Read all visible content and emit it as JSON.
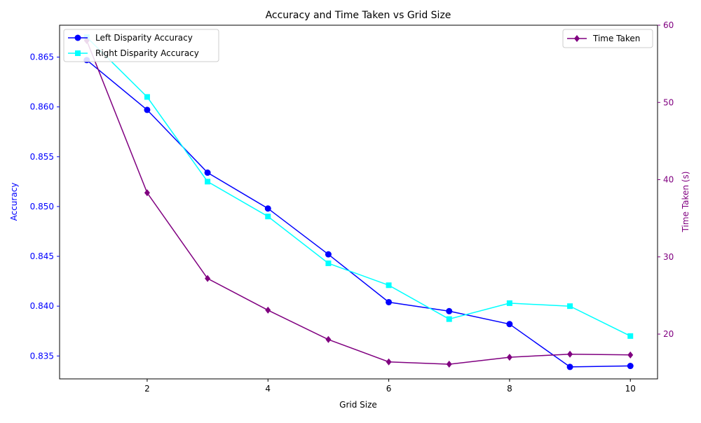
{
  "chart_data": {
    "type": "line",
    "title": "Accuracy and Time Taken vs Grid Size",
    "xlabel": "Grid Size",
    "ylabel_left": "Accuracy",
    "ylabel_right": "Time Taken (s)",
    "xlim": [
      0.55,
      10.45
    ],
    "ylim_left": [
      0.8327,
      0.8682
    ],
    "ylim_right": [
      14.2,
      60
    ],
    "x_ticks": [
      2,
      4,
      6,
      8,
      10
    ],
    "y_ticks_left": [
      0.835,
      0.84,
      0.845,
      0.85,
      0.855,
      0.86,
      0.865
    ],
    "y_ticks_right": [
      20,
      30,
      40,
      50,
      60
    ],
    "grid": false,
    "x": [
      1,
      2,
      3,
      4,
      5,
      6,
      7,
      8,
      9,
      10
    ],
    "series": [
      {
        "name": "Left Disparity Accuracy",
        "axis": "left",
        "color": "#0000ff",
        "marker": "circle",
        "values": [
          0.8647,
          0.8597,
          0.8534,
          0.8498,
          0.8452,
          0.8404,
          0.8395,
          0.8382,
          0.8339,
          0.834
        ]
      },
      {
        "name": "Right Disparity Accuracy",
        "axis": "left",
        "color": "#00ffff",
        "marker": "square",
        "values": [
          0.867,
          0.861,
          0.8525,
          0.849,
          0.8443,
          0.8421,
          0.8387,
          0.8403,
          0.84,
          0.837
        ]
      },
      {
        "name": "Time Taken",
        "axis": "right",
        "color": "#800080",
        "marker": "diamond",
        "values": [
          58.0,
          38.3,
          27.2,
          23.1,
          19.3,
          16.4,
          16.1,
          17.0,
          17.4,
          17.3
        ]
      }
    ],
    "legend_left_placement": "upper-left",
    "legend_right_placement": "upper-right"
  }
}
